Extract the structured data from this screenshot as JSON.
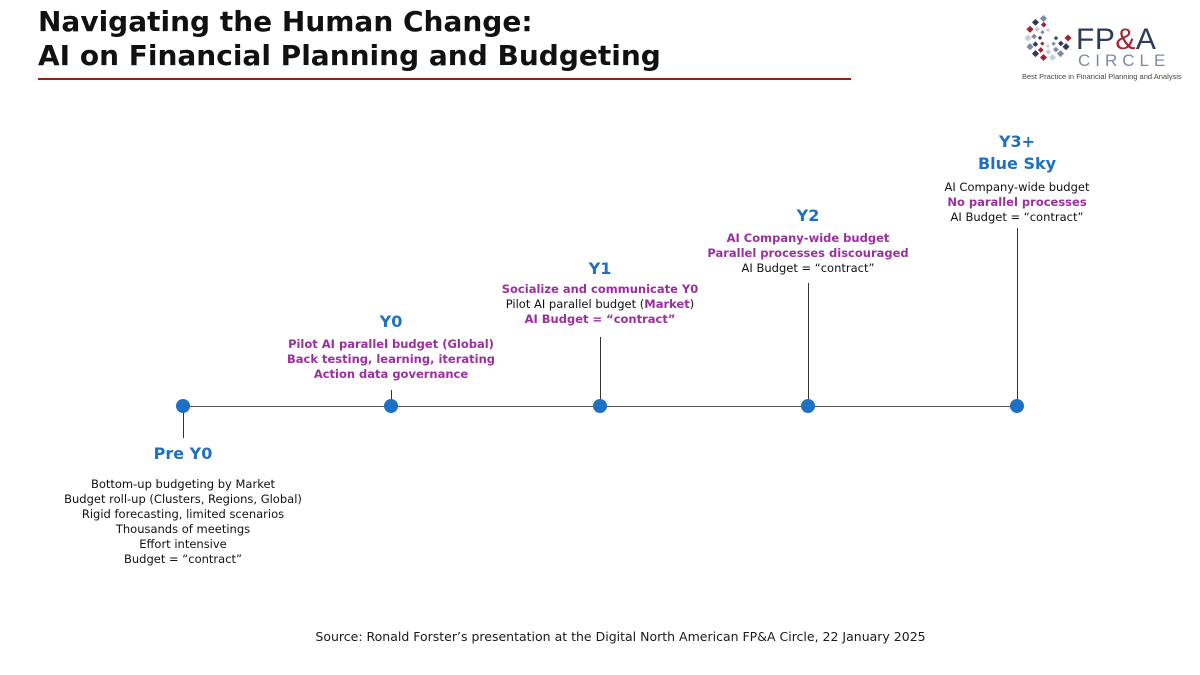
{
  "title": {
    "line1": "Navigating the Human Change:",
    "line2": "AI on Financial Planning and Budgeting"
  },
  "logo": {
    "name_part1": "FP",
    "name_amp": "&",
    "name_part2": "A",
    "sub": "CIRCLE",
    "tagline": "Best Practice in Financial Planning and Analysis"
  },
  "colors": {
    "stage_blue": "#1f6fc2",
    "highlight_purple": "#9b2fa0",
    "title_rule": "#9b1c1c"
  },
  "timeline": {
    "pre_y0": {
      "stage": "Pre Y0",
      "lines": [
        "Bottom-up budgeting by Market",
        "Budget roll-up (Clusters, Regions, Global)",
        "Rigid forecasting, limited scenarios",
        "Thousands of meetings",
        "Effort intensive",
        "Budget = “contract”"
      ]
    },
    "y0": {
      "stage": "Y0",
      "lines": [
        "Pilot AI parallel budget (Global)",
        "Back testing, learning, iterating",
        "Action data governance"
      ]
    },
    "y1": {
      "stage": "Y1",
      "line1": "Socialize and communicate Y0",
      "line2_pre": "Pilot AI parallel budget (",
      "line2_hl": "Market",
      "line2_post": ")",
      "line3": "AI Budget = “contract”"
    },
    "y2": {
      "stage": "Y2",
      "lines": [
        "AI Company-wide budget",
        "Parallel processes discouraged",
        "AI Budget = “contract”"
      ]
    },
    "y3": {
      "stage_line1": "Y3+",
      "stage_line2": "Blue Sky",
      "lines": [
        "AI Company-wide budget",
        "No parallel processes",
        "AI Budget = “contract”"
      ]
    }
  },
  "source": "Source: Ronald Forster’s presentation at the Digital North American FP&A Circle, 22 January 2025"
}
